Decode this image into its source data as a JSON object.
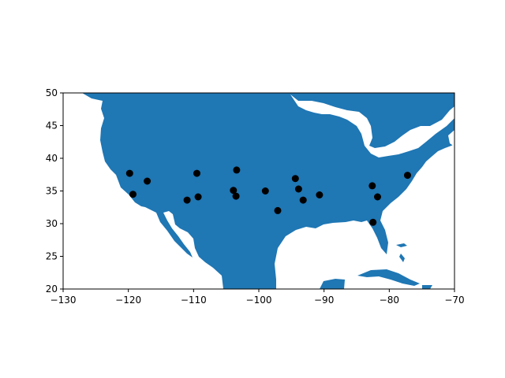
{
  "colors": {
    "land": "#1f77b4",
    "water": "#ffffff",
    "marker": "#000000",
    "axis": "#000000"
  },
  "axes": {
    "xlim": [
      -130,
      -70
    ],
    "ylim": [
      20,
      50
    ],
    "x_ticks": [
      -130,
      -120,
      -110,
      -100,
      -90,
      -80,
      -70
    ],
    "y_ticks": [
      20,
      25,
      30,
      35,
      40,
      45,
      50
    ]
  },
  "chart_data": {
    "type": "scatter",
    "points": [
      {
        "lon": -119.8,
        "lat": 37.7
      },
      {
        "lon": -119.3,
        "lat": 34.5
      },
      {
        "lon": -117.1,
        "lat": 36.5
      },
      {
        "lon": -111.0,
        "lat": 33.6
      },
      {
        "lon": -109.5,
        "lat": 37.7
      },
      {
        "lon": -109.3,
        "lat": 34.1
      },
      {
        "lon": -103.9,
        "lat": 35.1
      },
      {
        "lon": -103.5,
        "lat": 34.2
      },
      {
        "lon": -103.4,
        "lat": 38.2
      },
      {
        "lon": -99.0,
        "lat": 35.0
      },
      {
        "lon": -97.1,
        "lat": 32.0
      },
      {
        "lon": -94.4,
        "lat": 36.9
      },
      {
        "lon": -93.9,
        "lat": 35.3
      },
      {
        "lon": -93.2,
        "lat": 33.6
      },
      {
        "lon": -90.7,
        "lat": 34.4
      },
      {
        "lon": -82.6,
        "lat": 35.8
      },
      {
        "lon": -81.8,
        "lat": 34.1
      },
      {
        "lon": -82.5,
        "lat": 30.2
      },
      {
        "lon": -77.2,
        "lat": 37.4
      }
    ]
  }
}
